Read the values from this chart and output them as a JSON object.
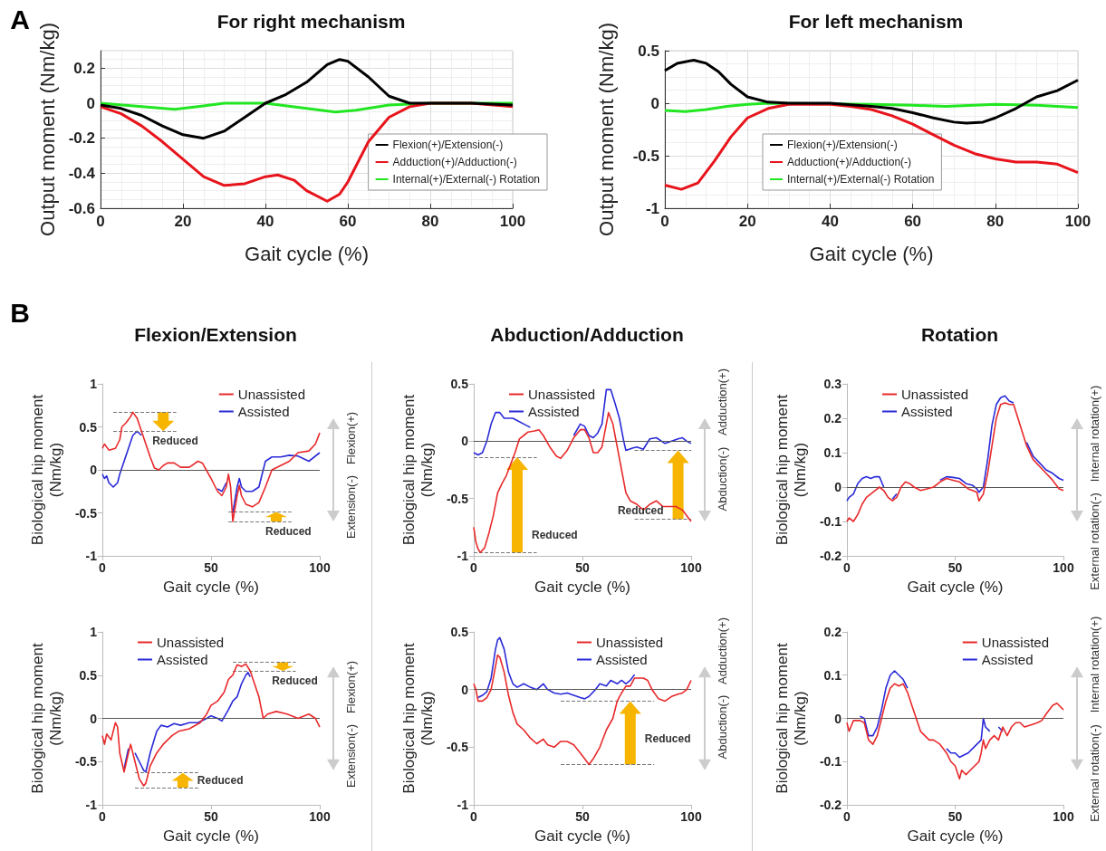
{
  "chart_data": [
    {
      "type": "line",
      "title": "For right mechanism",
      "xlabel": "Gait cycle (%)",
      "ylabel": "Output moment (Nm/kg)",
      "xlim": [
        0,
        100
      ],
      "xticks": [
        0,
        20,
        40,
        60,
        80,
        100
      ],
      "ylim": [
        -0.6,
        0.3
      ],
      "yticks": [
        -0.6,
        -0.4,
        -0.2,
        0,
        0.2
      ],
      "grid": true,
      "legend": "bottom right",
      "marker": "none",
      "annotations": [
        "A"
      ],
      "series": [
        {
          "name": "Flexion(+)/Extension(-)",
          "color": "#000000",
          "x": [
            0,
            5,
            10,
            15,
            20,
            25,
            30,
            35,
            40,
            45,
            50,
            55,
            58,
            60,
            65,
            70,
            75,
            80,
            90,
            100
          ],
          "values": [
            -0.01,
            -0.03,
            -0.07,
            -0.13,
            -0.18,
            -0.2,
            -0.16,
            -0.08,
            0.0,
            0.05,
            0.12,
            0.22,
            0.25,
            0.24,
            0.15,
            0.04,
            0.0,
            0.0,
            0.0,
            -0.01
          ]
        },
        {
          "name": "Adduction(+)/Adduction(-)",
          "color": "#e8141c",
          "x": [
            0,
            5,
            10,
            15,
            20,
            25,
            30,
            35,
            40,
            43,
            47,
            50,
            55,
            58,
            60,
            65,
            70,
            75,
            80,
            90,
            100
          ],
          "values": [
            -0.02,
            -0.06,
            -0.13,
            -0.22,
            -0.32,
            -0.42,
            -0.47,
            -0.46,
            -0.42,
            -0.41,
            -0.44,
            -0.5,
            -0.56,
            -0.52,
            -0.45,
            -0.22,
            -0.08,
            -0.02,
            0.0,
            0.0,
            -0.02
          ]
        },
        {
          "name": "Internal(+)/External(-) Rotation",
          "color": "#22e622",
          "x": [
            0,
            10,
            18,
            25,
            30,
            40,
            50,
            57,
            62,
            70,
            80,
            100
          ],
          "values": [
            0,
            -0.02,
            -0.035,
            -0.015,
            0,
            0,
            -0.03,
            -0.05,
            -0.04,
            -0.01,
            0,
            0
          ]
        }
      ]
    },
    {
      "type": "line",
      "title": "For left mechanism",
      "xlabel": "Gait cycle (%)",
      "ylabel": "Output moment (Nm/kg)",
      "xlim": [
        0,
        100
      ],
      "xticks": [
        0,
        20,
        40,
        60,
        80,
        100
      ],
      "ylim": [
        -1,
        0.5
      ],
      "yticks": [
        -1,
        -0.5,
        0,
        0.5
      ],
      "grid": true,
      "legend": "bottom",
      "marker": "none",
      "series": [
        {
          "name": "Flexion(+)/Extension(-)",
          "color": "#000000",
          "x": [
            0,
            3,
            7,
            10,
            13,
            16,
            20,
            25,
            30,
            40,
            50,
            55,
            60,
            65,
            70,
            73,
            77,
            80,
            85,
            90,
            95,
            100
          ],
          "values": [
            0.31,
            0.38,
            0.41,
            0.38,
            0.3,
            0.18,
            0.06,
            0.01,
            0,
            0,
            -0.03,
            -0.05,
            -0.09,
            -0.14,
            -0.18,
            -0.19,
            -0.18,
            -0.14,
            -0.05,
            0.06,
            0.12,
            0.22
          ]
        },
        {
          "name": "Adduction(+)/Adduction(-)",
          "color": "#e8141c",
          "x": [
            0,
            4,
            8,
            12,
            16,
            20,
            25,
            30,
            40,
            45,
            50,
            55,
            60,
            65,
            70,
            75,
            80,
            85,
            90,
            95,
            100
          ],
          "values": [
            -0.78,
            -0.82,
            -0.76,
            -0.55,
            -0.32,
            -0.14,
            -0.05,
            -0.01,
            -0.01,
            -0.03,
            -0.06,
            -0.12,
            -0.2,
            -0.3,
            -0.4,
            -0.48,
            -0.53,
            -0.56,
            -0.56,
            -0.58,
            -0.66
          ]
        },
        {
          "name": "Internal(+)/External(-) Rotation",
          "color": "#22e622",
          "x": [
            0,
            5,
            10,
            15,
            20,
            25,
            50,
            60,
            68,
            75,
            80,
            90,
            100
          ],
          "values": [
            -0.07,
            -0.08,
            -0.06,
            -0.03,
            -0.01,
            0,
            -0.01,
            -0.02,
            -0.03,
            -0.02,
            -0.01,
            -0.02,
            -0.04
          ]
        }
      ]
    },
    {
      "type": "line",
      "title": "Flexion/Extension",
      "xlabel": "Gait cycle (%)",
      "ylabel": "Biological hip moment (Nm/kg)",
      "xlim": [
        0,
        100
      ],
      "xticks": [
        0,
        50,
        100
      ],
      "ylim": [
        -1,
        1
      ],
      "yticks": [
        -1,
        -0.5,
        0,
        0.5,
        1
      ],
      "legend": "top right",
      "marker": "none",
      "annotations": [
        "B",
        "Flexion(+)",
        "Extension(-)",
        "Reduced",
        "Reduced"
      ],
      "ref_lines": [
        {
          "axis": "y",
          "value": 0,
          "color": "#555555",
          "line_style": "solid"
        },
        {
          "axis": "y",
          "value": 0.67,
          "color": "#777777",
          "line_style": "dashed"
        },
        {
          "axis": "y",
          "value": 0.45,
          "color": "#777777",
          "line_style": "dashed"
        },
        {
          "axis": "y",
          "value": -0.6,
          "color": "#777777",
          "line_style": "dashed"
        },
        {
          "axis": "y",
          "value": -0.49,
          "color": "#777777",
          "line_style": "dashed"
        }
      ],
      "series": [
        {
          "name": "Unassisted",
          "color": "#e8292a",
          "x": [
            0,
            1,
            3,
            6,
            8,
            9,
            11,
            13,
            14,
            16,
            18,
            20,
            22,
            24,
            26,
            28,
            30,
            33,
            36,
            40,
            44,
            46,
            50,
            53,
            55,
            57,
            58,
            59,
            60,
            62,
            63,
            64,
            66,
            69,
            72,
            75,
            78,
            82,
            86,
            90,
            95,
            98,
            100
          ],
          "values": [
            0.25,
            0.3,
            0.23,
            0.25,
            0.35,
            0.5,
            0.55,
            0.62,
            0.67,
            0.6,
            0.45,
            0.3,
            0.15,
            0.02,
            0,
            0.05,
            0.08,
            0.08,
            0.03,
            0.03,
            0.1,
            0.08,
            -0.1,
            -0.25,
            -0.3,
            -0.2,
            -0.05,
            -0.2,
            -0.6,
            -0.3,
            -0.18,
            -0.3,
            -0.4,
            -0.43,
            -0.38,
            -0.2,
            0,
            0.05,
            0.1,
            0.2,
            0.22,
            0.3,
            0.43
          ]
        },
        {
          "name": "Assisted",
          "color": "#2a2ad8",
          "x": [
            0,
            1,
            2,
            3,
            5,
            7,
            8,
            10,
            12,
            14,
            16,
            18,
            20,
            22,
            24,
            26,
            28,
            30,
            33,
            36,
            40,
            44,
            46,
            50,
            53,
            55,
            57,
            58,
            59,
            60,
            62,
            63,
            64,
            66,
            69,
            72,
            75,
            78,
            82,
            86,
            90,
            95,
            100
          ],
          "values": [
            -0.05,
            -0.1,
            -0.07,
            -0.15,
            -0.2,
            -0.15,
            -0.05,
            0.1,
            0.25,
            0.4,
            0.45,
            0.4,
            null,
            null,
            null,
            null,
            null,
            null,
            null,
            null,
            null,
            null,
            null,
            null,
            -0.22,
            -0.25,
            -0.15,
            null,
            null,
            -0.5,
            -0.2,
            -0.1,
            -0.2,
            -0.25,
            -0.25,
            -0.2,
            0.1,
            0.15,
            0.15,
            0.17,
            0.16,
            0.1,
            0.2
          ]
        }
      ]
    },
    {
      "type": "line",
      "title": "Abduction/Adduction",
      "xlabel": "Gait cycle (%)",
      "ylabel": "Biological hip moment (Nm/kg)",
      "xlim": [
        0,
        100
      ],
      "xticks": [
        0,
        50,
        100
      ],
      "ylim": [
        -1,
        0.5
      ],
      "yticks": [
        -1,
        -0.5,
        0,
        0.5
      ],
      "legend": "top left",
      "marker": "none",
      "annotations": [
        "Adduction(+)",
        "Abduction(-)",
        "Reduced",
        "Reduced"
      ],
      "ref_lines": [
        {
          "axis": "y",
          "value": 0,
          "color": "#555555",
          "line_style": "solid"
        },
        {
          "axis": "y",
          "value": -0.14,
          "color": "#777777",
          "line_style": "dashed"
        },
        {
          "axis": "y",
          "value": -0.97,
          "color": "#777777",
          "line_style": "dashed"
        },
        {
          "axis": "y",
          "value": -0.08,
          "color": "#777777",
          "line_style": "dashed"
        },
        {
          "axis": "y",
          "value": -0.68,
          "color": "#777777",
          "line_style": "dashed"
        }
      ],
      "series": [
        {
          "name": "Unassisted",
          "color": "#e8292a",
          "x": [
            0,
            1,
            2,
            3,
            5,
            7,
            9,
            11,
            13,
            15,
            17,
            19,
            21,
            23,
            25,
            28,
            30,
            32,
            35,
            38,
            40,
            43,
            46,
            49,
            51,
            53,
            55,
            57,
            59,
            61,
            62,
            64,
            66,
            68,
            70,
            72,
            75,
            78,
            81,
            84,
            87,
            90,
            93,
            96,
            98,
            100
          ],
          "values": [
            -0.75,
            -0.88,
            -0.94,
            -0.97,
            -0.93,
            -0.8,
            -0.65,
            -0.45,
            -0.37,
            -0.3,
            -0.2,
            -0.1,
            0.02,
            0.05,
            0.08,
            0.09,
            0.1,
            0.05,
            -0.05,
            -0.13,
            -0.15,
            -0.08,
            0.03,
            0.1,
            0.1,
            0.03,
            -0.1,
            -0.1,
            -0.05,
            0.15,
            0.25,
            0.15,
            -0.05,
            -0.25,
            -0.45,
            -0.52,
            -0.55,
            -0.6,
            -0.55,
            -0.52,
            -0.57,
            -0.57,
            -0.57,
            -0.6,
            -0.65,
            -0.7
          ]
        },
        {
          "name": "Assisted",
          "color": "#2a2ad8",
          "x": [
            0,
            2,
            4,
            6,
            8,
            10,
            12,
            14,
            16,
            18,
            20,
            23,
            26,
            30,
            32,
            35,
            38,
            40,
            43,
            46,
            49,
            51,
            53,
            55,
            57,
            59,
            61,
            63,
            65,
            67,
            69,
            70,
            73,
            75,
            78,
            81,
            84,
            88,
            91,
            94,
            96,
            98,
            100
          ],
          "values": [
            -0.1,
            -0.12,
            -0.1,
            0,
            0.15,
            0.25,
            0.25,
            0.2,
            0.2,
            0.2,
            0.18,
            0.15,
            0.12,
            null,
            null,
            null,
            null,
            null,
            null,
            0.05,
            0.15,
            0.13,
            0.05,
            0.03,
            0.07,
            0.15,
            0.45,
            0.45,
            0.33,
            0.2,
            0,
            -0.08,
            -0.06,
            -0.05,
            -0.07,
            0.02,
            0.03,
            -0.02,
            0,
            0.02,
            0.03,
            0,
            -0.02
          ]
        }
      ]
    },
    {
      "type": "line",
      "title": "Rotation",
      "xlabel": "Gait cycle (%)",
      "ylabel": "Biological hip moment (Nm/kg)",
      "xlim": [
        0,
        100
      ],
      "xticks": [
        0,
        50,
        100
      ],
      "ylim": [
        -0.2,
        0.3
      ],
      "yticks": [
        -0.2,
        -0.1,
        0,
        0.1,
        0.2,
        0.3
      ],
      "legend": "top left",
      "marker": "none",
      "annotations": [
        "Internal rotation(+)",
        "External rotation(-)"
      ],
      "ref_lines": [
        {
          "axis": "y",
          "value": 0,
          "color": "#555555",
          "line_style": "solid"
        }
      ],
      "series": [
        {
          "name": "Unassisted",
          "color": "#e8292a",
          "x": [
            0,
            1,
            3,
            5,
            7,
            9,
            11,
            13,
            15,
            17,
            19,
            21,
            23,
            25,
            27,
            29,
            31,
            34,
            37,
            40,
            43,
            46,
            49,
            52,
            54,
            56,
            58,
            60,
            61,
            63,
            65,
            67,
            69,
            71,
            73,
            75,
            77,
            79,
            81,
            83,
            86,
            89,
            92,
            95,
            98,
            100
          ],
          "values": [
            -0.1,
            -0.09,
            -0.1,
            -0.08,
            -0.05,
            -0.03,
            -0.02,
            -0.01,
            0,
            -0.01,
            -0.03,
            -0.04,
            -0.03,
            0,
            0.015,
            0.01,
            0,
            -0.01,
            -0.005,
            0,
            0.015,
            0.025,
            0.02,
            0.015,
            0.005,
            -0.005,
            -0.01,
            -0.015,
            -0.04,
            -0.02,
            0.04,
            0.12,
            0.2,
            0.24,
            0.245,
            0.24,
            0.24,
            0.2,
            0.16,
            0.12,
            0.08,
            0.06,
            0.04,
            0.02,
            -0.005,
            -0.01
          ]
        },
        {
          "name": "Assisted",
          "color": "#2a2ad8",
          "x": [
            0,
            1,
            3,
            5,
            7,
            9,
            11,
            13,
            15,
            17,
            19,
            21,
            23,
            25,
            27,
            29,
            31,
            34,
            37,
            40,
            43,
            46,
            49,
            52,
            55,
            58,
            60,
            61,
            63,
            65,
            67,
            69,
            71,
            73,
            75,
            77,
            79,
            81,
            83,
            86,
            89,
            92,
            95,
            98,
            100
          ],
          "values": [
            -0.04,
            -0.03,
            -0.02,
            0.01,
            0.025,
            0.03,
            0.025,
            0.03,
            0.03,
            0,
            null,
            -0.035,
            -0.02,
            null,
            null,
            null,
            null,
            null,
            null,
            null,
            0.02,
            0.03,
            0.028,
            0.025,
            0.01,
            0.005,
            -0.005,
            -0.015,
            0,
            0.08,
            0.18,
            0.24,
            0.26,
            0.265,
            0.25,
            0.245,
            null,
            null,
            0.13,
            0.09,
            0.07,
            0.05,
            0.04,
            0.025,
            0.02
          ]
        }
      ]
    },
    {
      "type": "line",
      "xlabel": "Gait cycle (%)",
      "ylabel": "Biological hip moment (Nm/kg)",
      "xlim": [
        0,
        100
      ],
      "xticks": [
        0,
        50,
        100
      ],
      "ylim": [
        -1,
        1
      ],
      "yticks": [
        -1,
        -0.5,
        0,
        0.5,
        1
      ],
      "legend": "top left",
      "marker": "none",
      "annotations": [
        "Flexion(+)",
        "Extension(-)",
        "Reduced",
        "Reduced"
      ],
      "ref_lines": [
        {
          "axis": "y",
          "value": 0,
          "color": "#555555",
          "line_style": "solid"
        },
        {
          "axis": "y",
          "value": 0.65,
          "color": "#777777",
          "line_style": "dashed"
        },
        {
          "axis": "y",
          "value": 0.55,
          "color": "#777777",
          "line_style": "dashed"
        },
        {
          "axis": "y",
          "value": -0.8,
          "color": "#777777",
          "line_style": "dashed"
        },
        {
          "axis": "y",
          "value": -0.63,
          "color": "#777777",
          "line_style": "dashed"
        }
      ],
      "series": [
        {
          "name": "Unassisted",
          "color": "#e8292a",
          "x": [
            0,
            1,
            2,
            4,
            6,
            7,
            8,
            10,
            12,
            13,
            15,
            17,
            19,
            20,
            22,
            25,
            28,
            32,
            35,
            40,
            45,
            48,
            50,
            53,
            56,
            58,
            60,
            62,
            64,
            66,
            68,
            70,
            72,
            74,
            76,
            80,
            85,
            90,
            95,
            98,
            100
          ],
          "values": [
            -0.2,
            -0.3,
            -0.18,
            -0.25,
            -0.05,
            -0.1,
            -0.4,
            -0.62,
            -0.4,
            -0.3,
            -0.5,
            -0.7,
            -0.78,
            -0.75,
            -0.55,
            -0.4,
            -0.3,
            -0.2,
            -0.15,
            -0.12,
            -0.05,
            0.05,
            0.15,
            0.2,
            0.3,
            0.45,
            0.5,
            0.62,
            0.6,
            0.63,
            0.55,
            0.4,
            0.25,
            0,
            0.05,
            0.08,
            0.05,
            0,
            0.05,
            0,
            -0.1
          ]
        },
        {
          "name": "Assisted",
          "color": "#2a2ad8",
          "x": [
            10,
            12,
            13,
            15,
            17,
            19,
            20,
            22,
            25,
            27,
            30,
            33,
            36,
            40,
            44,
            48,
            50,
            53,
            55,
            58,
            60,
            62,
            64,
            66,
            67,
            68
          ],
          "values": [
            -0.58,
            -0.35,
            null,
            -0.4,
            -0.5,
            -0.6,
            -0.62,
            -0.4,
            -0.15,
            -0.08,
            -0.1,
            -0.06,
            -0.08,
            -0.05,
            -0.05,
            0,
            0.03,
            0,
            -0.03,
            0.1,
            0.2,
            0.25,
            0.4,
            0.5,
            0.53,
            0.48
          ]
        }
      ]
    },
    {
      "type": "line",
      "xlabel": "Gait cycle (%)",
      "ylabel": "Biological hip moment (Nm/kg)",
      "xlim": [
        0,
        100
      ],
      "xticks": [
        0,
        50,
        100
      ],
      "ylim": [
        -1,
        0.5
      ],
      "yticks": [
        -1,
        -0.5,
        0,
        0.5
      ],
      "legend": "top",
      "marker": "none",
      "annotations": [
        "Adduction(+)",
        "Abduction(-)",
        "Reduced"
      ],
      "ref_lines": [
        {
          "axis": "y",
          "value": 0,
          "color": "#555555",
          "line_style": "solid"
        },
        {
          "axis": "y",
          "value": -0.1,
          "color": "#777777",
          "line_style": "dashed"
        },
        {
          "axis": "y",
          "value": -0.65,
          "color": "#777777",
          "line_style": "dashed"
        }
      ],
      "series": [
        {
          "name": "Unassisted",
          "color": "#e8292a",
          "x": [
            0,
            1,
            2,
            4,
            6,
            8,
            10,
            11,
            12,
            14,
            16,
            18,
            20,
            23,
            26,
            29,
            32,
            34,
            37,
            40,
            43,
            46,
            49,
            51,
            53,
            55,
            58,
            61,
            64,
            66,
            68,
            70,
            72,
            74,
            76,
            78,
            80,
            82,
            85,
            88,
            91,
            94,
            96,
            98,
            100
          ],
          "values": [
            0.05,
            0,
            -0.1,
            -0.1,
            -0.07,
            0,
            0.2,
            0.3,
            0.28,
            0.15,
            -0.05,
            -0.2,
            -0.3,
            -0.35,
            -0.42,
            -0.47,
            -0.43,
            -0.48,
            -0.5,
            -0.45,
            -0.45,
            -0.48,
            -0.55,
            -0.6,
            -0.65,
            -0.6,
            -0.5,
            -0.35,
            -0.25,
            -0.1,
            -0.03,
            0.03,
            0.03,
            0.1,
            0.1,
            0.1,
            0.08,
            0,
            -0.08,
            -0.1,
            -0.06,
            -0.04,
            -0.03,
            0,
            0.08
          ]
        },
        {
          "name": "Assisted",
          "color": "#2a2ad8",
          "x": [
            2,
            4,
            6,
            8,
            10,
            11,
            12,
            14,
            16,
            18,
            20,
            23,
            26,
            29,
            32,
            34,
            37,
            40,
            43,
            46,
            49,
            51,
            53,
            56,
            58,
            61,
            63,
            66,
            68,
            70,
            72,
            74
          ],
          "values": [
            -0.07,
            -0.05,
            -0.02,
            0.1,
            0.35,
            0.43,
            0.45,
            0.35,
            0.15,
            0.05,
            0.02,
            0.05,
            0.02,
            0,
            0.05,
            0,
            -0.03,
            -0.04,
            -0.03,
            -0.05,
            -0.07,
            -0.08,
            -0.06,
            0,
            0.05,
            0.03,
            0.08,
            0.05,
            0.08,
            0.05,
            0.08,
            0.13
          ]
        }
      ]
    },
    {
      "type": "line",
      "xlabel": "Gait cycle (%)",
      "ylabel": "Biological hip moment (Nm/kg)",
      "xlim": [
        0,
        100
      ],
      "xticks": [
        0,
        50,
        100
      ],
      "ylim": [
        -0.2,
        0.2
      ],
      "yticks": [
        -0.2,
        -0.1,
        0,
        0.1,
        0.2
      ],
      "legend": "top right",
      "marker": "none",
      "annotations": [
        "Internal rotation(+)",
        "External rotation(-)"
      ],
      "ref_lines": [
        {
          "axis": "y",
          "value": 0,
          "color": "#555555",
          "line_style": "solid"
        }
      ],
      "series": [
        {
          "name": "Unassisted",
          "color": "#e8292a",
          "x": [
            0,
            1,
            3,
            6,
            8,
            10,
            12,
            14,
            16,
            18,
            20,
            22,
            24,
            26,
            28,
            30,
            32,
            34,
            36,
            38,
            40,
            43,
            46,
            48,
            50,
            52,
            53,
            55,
            57,
            59,
            61,
            62,
            63,
            64,
            66,
            68,
            70,
            72,
            74,
            76,
            78,
            80,
            82,
            85,
            88,
            90,
            92,
            95,
            97,
            100
          ],
          "values": [
            -0.01,
            -0.03,
            -0.005,
            -0.005,
            -0.01,
            -0.05,
            -0.06,
            -0.04,
            0,
            0.04,
            0.07,
            0.08,
            0.075,
            0.08,
            0.06,
            0.03,
            0,
            -0.03,
            -0.04,
            -0.05,
            -0.05,
            -0.06,
            -0.08,
            -0.1,
            -0.11,
            -0.14,
            -0.12,
            -0.13,
            -0.12,
            -0.11,
            -0.1,
            -0.08,
            -0.05,
            -0.07,
            -0.05,
            -0.04,
            -0.05,
            -0.02,
            -0.04,
            -0.02,
            -0.01,
            -0.01,
            -0.02,
            -0.015,
            -0.01,
            -0.005,
            0.01,
            0.03,
            0.035,
            0.02
          ]
        },
        {
          "name": "Assisted",
          "color": "#2a2ad8",
          "x": [
            6,
            8,
            10,
            12,
            14,
            16,
            18,
            20,
            22,
            24,
            26,
            28,
            30,
            46,
            48,
            50,
            52,
            54,
            56,
            58,
            60,
            62,
            63,
            64,
            66,
            68,
            70,
            72
          ],
          "values": [
            0.005,
            0,
            -0.04,
            -0.04,
            -0.02,
            0.02,
            0.07,
            0.1,
            0.11,
            0.1,
            0.09,
            0.07,
            null,
            -0.07,
            -0.08,
            -0.08,
            -0.09,
            -0.085,
            -0.08,
            -0.07,
            -0.06,
            -0.05,
            0,
            -0.02,
            -0.03,
            null,
            -0.02,
            -0.03
          ]
        }
      ]
    }
  ]
}
